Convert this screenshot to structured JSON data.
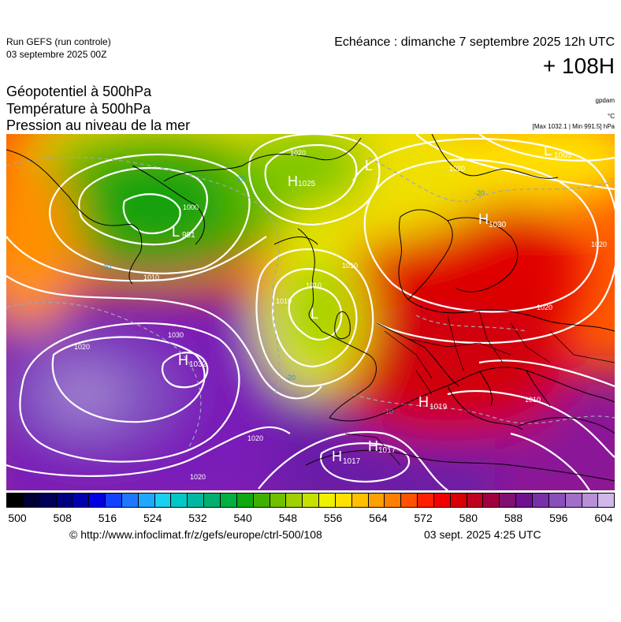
{
  "header": {
    "run_title": "Run GEFS (run controle)",
    "run_date": "03 septembre 2025 00Z",
    "valid_time": "Echéance : dimanche 7 septembre 2025 12h UTC",
    "lead_time": "+ 108H"
  },
  "parameters": {
    "line1": "Géopotentiel à 500hPa",
    "line2": "Température à 500hPa",
    "line3": "Pression au niveau de la mer",
    "unit_geopotential": "gpdam",
    "unit_temperature": "°C",
    "max_min": "[Max 1032.1 | Min 991.5] hPa"
  },
  "pressure_centers": [
    {
      "type": "H",
      "value": "1025"
    },
    {
      "type": "L",
      "value": "991"
    },
    {
      "type": "L",
      "value": ""
    },
    {
      "type": "L",
      "value": "1005"
    },
    {
      "type": "H",
      "value": "1030"
    },
    {
      "type": "L",
      "value": ""
    },
    {
      "type": "H",
      "value": "1032"
    },
    {
      "type": "H",
      "value": "1019"
    },
    {
      "type": "H",
      "value": "1017"
    },
    {
      "type": "H",
      "value": "1017"
    }
  ],
  "isobar_labels": [
    "1020",
    "1000",
    "1010",
    "1010",
    "1020",
    "1010",
    "1020",
    "1030",
    "1020",
    "1020",
    "1010",
    "1020",
    "1010",
    "1020"
  ],
  "isotherm_labels": [
    "-20",
    "-20",
    "-20",
    "-20",
    "-10"
  ],
  "colorbar": {
    "labels": [
      "500",
      "508",
      "516",
      "524",
      "532",
      "540",
      "548",
      "556",
      "564",
      "572",
      "580",
      "588",
      "596",
      "604"
    ],
    "colors": [
      "#000000",
      "#000033",
      "#00005a",
      "#000080",
      "#0000b0",
      "#0000e0",
      "#1440ff",
      "#1e78ff",
      "#20a8ff",
      "#18d0f0",
      "#00c8c8",
      "#00b8a0",
      "#00b070",
      "#00b040",
      "#10a810",
      "#40b000",
      "#70c000",
      "#a0d000",
      "#c8e000",
      "#f0f000",
      "#ffe000",
      "#ffc000",
      "#ffa000",
      "#ff8000",
      "#ff5000",
      "#ff2000",
      "#f00000",
      "#d80000",
      "#c00020",
      "#a00040",
      "#801070",
      "#701090",
      "#7830a8",
      "#8850b8",
      "#a070c8",
      "#b890d8",
      "#d0b8e8"
    ]
  },
  "footer": {
    "credit": "© http://www.infoclimat.fr/z/gefs/europe/ctrl-500/108",
    "generated": "03 sept. 2025  4:25 UTC"
  }
}
